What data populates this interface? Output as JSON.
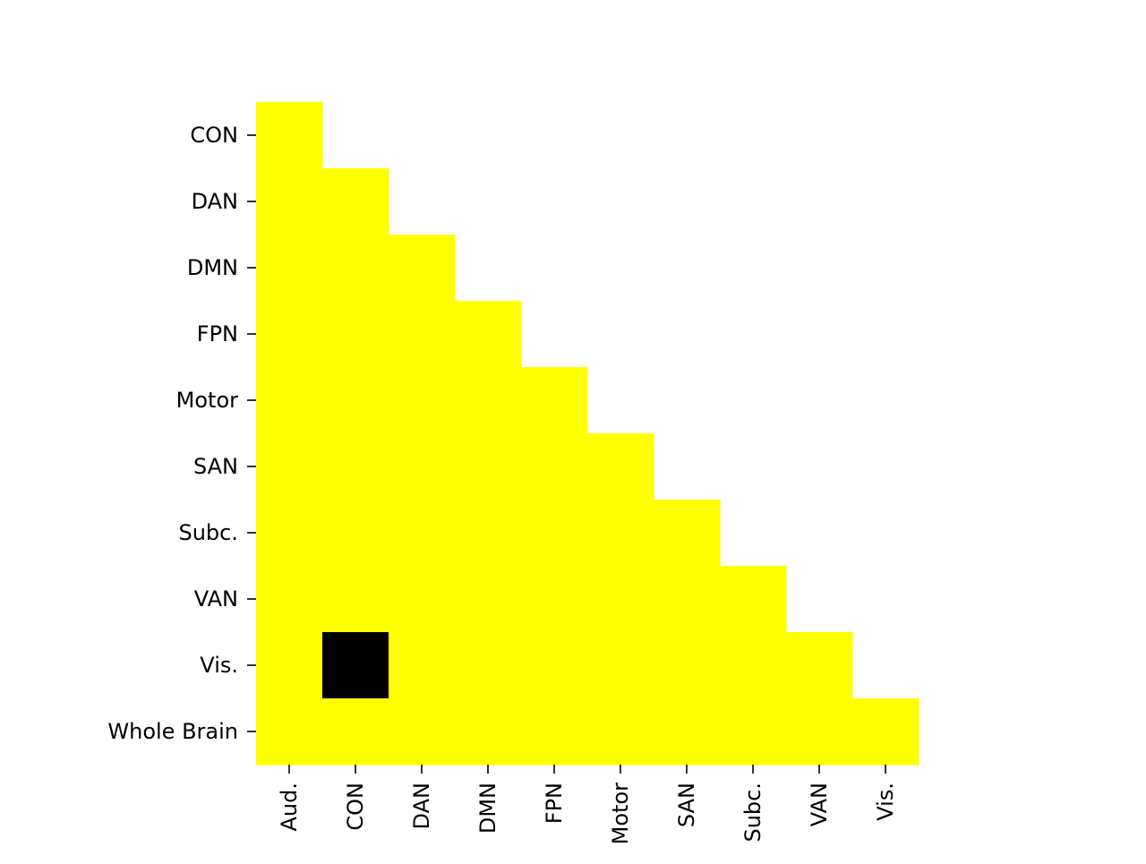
{
  "chart_data": {
    "type": "heatmap",
    "title": "",
    "xlabel": "",
    "ylabel": "",
    "triangle": "lower",
    "x_categories": [
      "Aud.",
      "CON",
      "DAN",
      "DMN",
      "FPN",
      "Motor",
      "SAN",
      "Subc.",
      "VAN",
      "Vis."
    ],
    "y_categories": [
      "CON",
      "DAN",
      "DMN",
      "FPN",
      "Motor",
      "SAN",
      "Subc.",
      "VAN",
      "Vis.",
      "Whole Brain"
    ],
    "values": [
      [
        1,
        null,
        null,
        null,
        null,
        null,
        null,
        null,
        null,
        null
      ],
      [
        1,
        1,
        null,
        null,
        null,
        null,
        null,
        null,
        null,
        null
      ],
      [
        1,
        1,
        1,
        null,
        null,
        null,
        null,
        null,
        null,
        null
      ],
      [
        1,
        1,
        1,
        1,
        null,
        null,
        null,
        null,
        null,
        null
      ],
      [
        1,
        1,
        1,
        1,
        1,
        null,
        null,
        null,
        null,
        null
      ],
      [
        1,
        1,
        1,
        1,
        1,
        1,
        null,
        null,
        null,
        null
      ],
      [
        1,
        1,
        1,
        1,
        1,
        1,
        1,
        null,
        null,
        null
      ],
      [
        1,
        1,
        1,
        1,
        1,
        1,
        1,
        1,
        null,
        null
      ],
      [
        1,
        0,
        1,
        1,
        1,
        1,
        1,
        1,
        1,
        null
      ],
      [
        1,
        1,
        1,
        1,
        1,
        1,
        1,
        1,
        1,
        1
      ]
    ],
    "colors": {
      "1": "#ffff00",
      "0": "#000000"
    },
    "grid": false,
    "colorbar": false
  }
}
